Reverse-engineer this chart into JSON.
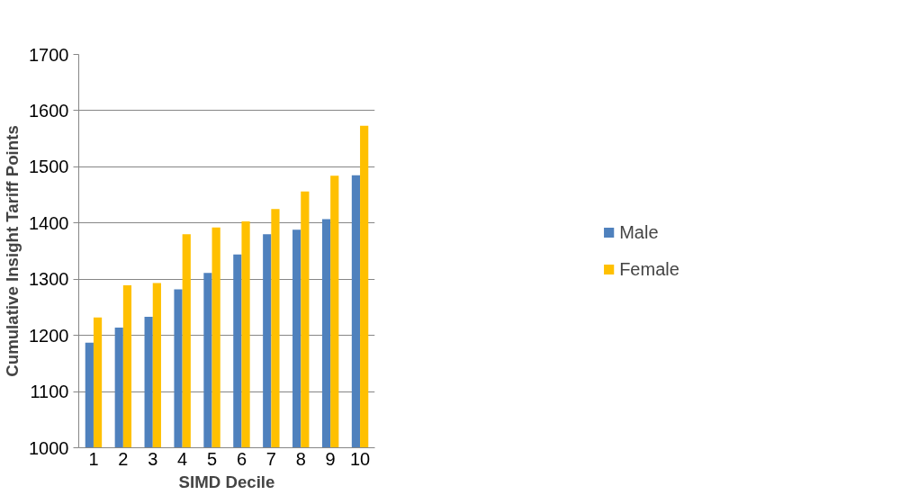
{
  "chart_data": {
    "type": "bar",
    "xlabel": "SIMD Decile",
    "ylabel": "Cumulative Insight Tariff Points",
    "categories": [
      "1",
      "2",
      "3",
      "4",
      "5",
      "6",
      "7",
      "8",
      "9",
      "10"
    ],
    "series": [
      {
        "name": "Male",
        "color": "#4f81bd",
        "values": [
          1187,
          1214,
          1233,
          1282,
          1311,
          1344,
          1380,
          1388,
          1407,
          1485
        ]
      },
      {
        "name": "Female",
        "color": "#ffc000",
        "values": [
          1232,
          1289,
          1293,
          1380,
          1392,
          1403,
          1425,
          1456,
          1484,
          1573
        ]
      }
    ],
    "ylim": [
      1000,
      1700
    ],
    "yticks": [
      1000,
      1100,
      1200,
      1300,
      1400,
      1500,
      1600,
      1700
    ],
    "grid": "y",
    "legend": "right"
  }
}
